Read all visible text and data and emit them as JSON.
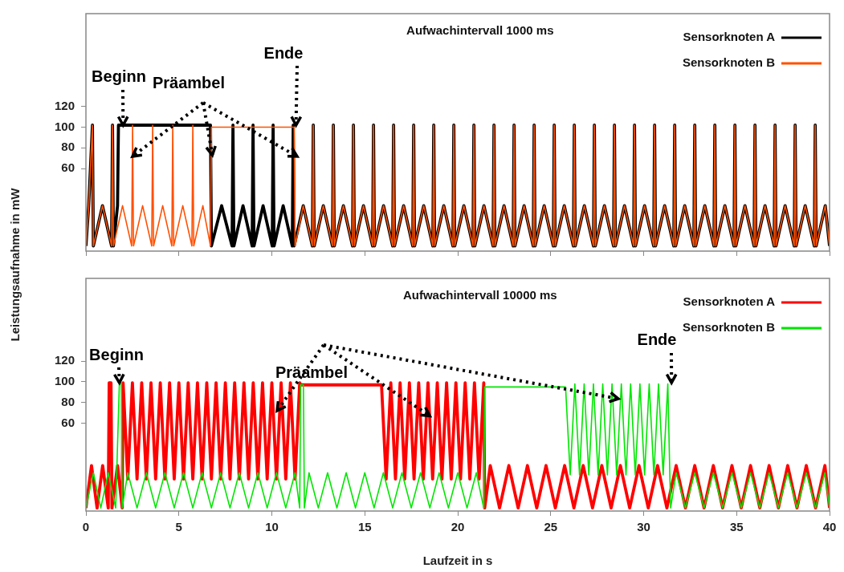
{
  "chart_data": [
    {
      "type": "line",
      "title": "Aufwachintervall 1000 ms",
      "ylabel": "Leistungsaufnahme in mW",
      "legend": "top right",
      "tick_labels": "y",
      "xlim": [
        0,
        40
      ],
      "xticks": [
        0,
        5,
        10,
        15,
        20,
        25,
        30,
        35,
        40
      ],
      "ylim": [
        -20,
        210
      ],
      "yticks": [
        60,
        80,
        100,
        120
      ],
      "annotations": [
        {
          "text": "Beginn",
          "x": 2,
          "y": 102
        },
        {
          "text": "Präambel",
          "x": 6.8,
          "y": 73
        },
        {
          "text": "Ende",
          "x": 11.3,
          "y": 102
        }
      ],
      "series": [
        {
          "name": "Sensorknoten A",
          "color": "#000000",
          "x": [
            0,
            0.15,
            0.35,
            0.4,
            0.89,
            1.38,
            1.43,
            1.48,
            1.7,
            1.75,
            6.7,
            6.75,
            7.3,
            7.86,
            7.91,
            7.96,
            8.45,
            8.94,
            8.99,
            9.04,
            9.53,
            10.02,
            10.07,
            10.12,
            10.61,
            11.1,
            11.15,
            11.2,
            11.69,
            12.18,
            12.23,
            12.28,
            12.77,
            13.26,
            13.31,
            13.36,
            13.85,
            14.34,
            14.39,
            14.44,
            14.93,
            15.42,
            15.47,
            15.52,
            16.01,
            16.5,
            16.55,
            16.6,
            17.09,
            17.58,
            17.63,
            17.68,
            18.17,
            18.66,
            18.71,
            18.76,
            19.25,
            19.74,
            19.79,
            19.84,
            20.33,
            20.82,
            20.87,
            20.92,
            21.41,
            21.9,
            21.95,
            22,
            22.49,
            22.98,
            23.03,
            23.08,
            23.57,
            24.06,
            24.11,
            24.16,
            24.65,
            25.14,
            25.19,
            25.24,
            25.73,
            26.22,
            26.27,
            26.32,
            26.81,
            27.3,
            27.35,
            27.4,
            27.89,
            28.38,
            28.43,
            28.48,
            28.97,
            29.46,
            29.51,
            29.56,
            30.05,
            30.54,
            30.59,
            30.64,
            31.13,
            31.62,
            31.67,
            31.72,
            32.21,
            32.7,
            32.75,
            32.8,
            33.29,
            33.78,
            33.83,
            33.88,
            34.37,
            34.86,
            34.91,
            34.96,
            35.45,
            35.94,
            35.99,
            36.04,
            36.53,
            37.02,
            37.07,
            37.12,
            37.61,
            38.1,
            38.15,
            38.2,
            38.69,
            39.18,
            39.23,
            39.28,
            39.77,
            40
          ],
          "values": [
            -15,
            24,
            102,
            -15,
            24,
            -15,
            102,
            -15,
            24,
            102,
            102,
            -15,
            24,
            -15,
            102,
            -15,
            24,
            -15,
            102,
            -15,
            24,
            -15,
            102,
            -15,
            24,
            -15,
            102,
            -15,
            24,
            -15,
            102,
            -15,
            24,
            -15,
            102,
            -15,
            24,
            -15,
            102,
            -15,
            24,
            -15,
            102,
            -15,
            24,
            -15,
            102,
            -15,
            24,
            -15,
            102,
            -15,
            24,
            -15,
            102,
            -15,
            24,
            -15,
            102,
            -15,
            24,
            -15,
            102,
            -15,
            24,
            -15,
            102,
            -15,
            24,
            -15,
            102,
            -15,
            24,
            -15,
            102,
            -15,
            24,
            -15,
            102,
            -15,
            24,
            -15,
            102,
            -15,
            24,
            -15,
            102,
            -15,
            24,
            -15,
            102,
            -15,
            24,
            -15,
            102,
            -15,
            24,
            -15,
            102,
            -15,
            24,
            -15,
            102,
            -15,
            24,
            -15,
            102,
            -15,
            24,
            -15,
            102,
            -15,
            24,
            -15,
            102,
            -15,
            24,
            -15,
            102,
            -15,
            24,
            -15,
            102,
            -15,
            24,
            -15,
            102,
            -15,
            24,
            -15,
            102,
            -15,
            24,
            -15
          ]
        },
        {
          "name": "Sensorknoten B",
          "color": "#ff5000",
          "x": [
            0,
            0.15,
            0.35,
            0.4,
            0.89,
            1.38,
            1.43,
            1.48,
            1.97,
            2.46,
            2.51,
            2.56,
            3.05,
            3.54,
            3.59,
            3.64,
            4.13,
            4.62,
            4.67,
            4.72,
            5.21,
            5.7,
            5.75,
            5.8,
            6.29,
            6.7,
            6.75,
            11.2,
            11.25,
            11.69,
            12.18,
            12.23,
            12.28,
            12.77,
            13.26,
            13.31,
            13.36,
            13.85,
            14.34,
            14.39,
            14.44,
            14.93,
            15.42,
            15.47,
            15.52,
            16.01,
            16.5,
            16.55,
            16.6,
            17.09,
            17.58,
            17.63,
            17.68,
            18.17,
            18.66,
            18.71,
            18.76,
            19.25,
            19.74,
            19.79,
            19.84,
            20.33,
            20.82,
            20.87,
            20.92,
            21.41,
            21.9,
            21.95,
            22,
            22.49,
            22.98,
            23.03,
            23.08,
            23.57,
            24.06,
            24.11,
            24.16,
            24.65,
            25.14,
            25.19,
            25.24,
            25.73,
            26.22,
            26.27,
            26.32,
            26.81,
            27.3,
            27.35,
            27.4,
            27.89,
            28.38,
            28.43,
            28.48,
            28.97,
            29.46,
            29.51,
            29.56,
            30.05,
            30.54,
            30.59,
            30.64,
            31.13,
            31.62,
            31.67,
            31.72,
            32.21,
            32.7,
            32.75,
            32.8,
            33.29,
            33.78,
            33.83,
            33.88,
            34.37,
            34.86,
            34.91,
            34.96,
            35.45,
            35.94,
            35.99,
            36.04,
            36.53,
            37.02,
            37.07,
            37.12,
            37.61,
            38.1,
            38.15,
            38.2,
            38.69,
            39.18,
            39.23,
            39.28,
            39.77,
            40
          ],
          "values": [
            -15,
            24,
            102,
            -15,
            24,
            -15,
            102,
            -15,
            24,
            -15,
            102,
            -15,
            24,
            -15,
            102,
            -15,
            24,
            -15,
            102,
            -15,
            24,
            -15,
            102,
            -15,
            24,
            -15,
            100,
            100,
            -15,
            24,
            -15,
            102,
            -15,
            24,
            -15,
            102,
            -15,
            24,
            -15,
            102,
            -15,
            24,
            -15,
            102,
            -15,
            24,
            -15,
            102,
            -15,
            24,
            -15,
            102,
            -15,
            24,
            -15,
            102,
            -15,
            24,
            -15,
            102,
            -15,
            24,
            -15,
            102,
            -15,
            24,
            -15,
            102,
            -15,
            24,
            -15,
            102,
            -15,
            24,
            -15,
            102,
            -15,
            24,
            -15,
            102,
            -15,
            24,
            -15,
            102,
            -15,
            24,
            -15,
            102,
            -15,
            24,
            -15,
            102,
            -15,
            24,
            -15,
            102,
            -15,
            24,
            -15,
            102,
            -15,
            24,
            -15,
            102,
            -15,
            24,
            -15,
            102,
            -15,
            24,
            -15,
            102,
            -15,
            24,
            -15,
            102,
            -15,
            24,
            -15,
            102,
            -15,
            24,
            -15,
            102,
            -15,
            24,
            -15,
            102,
            -15,
            24,
            -15,
            102,
            -15,
            24,
            -15
          ]
        }
      ]
    },
    {
      "type": "line",
      "title": "Aufwachintervall 10000 ms",
      "xlabel": "Laufzeit in s",
      "legend": "top right",
      "xlim": [
        0,
        40
      ],
      "xticks": [
        0,
        5,
        10,
        15,
        20,
        25,
        30,
        35,
        40
      ],
      "ylim": [
        -25,
        200
      ],
      "yticks": [
        60,
        80,
        100,
        120
      ],
      "annotations": [
        {
          "text": "Beginn",
          "x": 1.8,
          "y": 99
        },
        {
          "text": "Präambel",
          "x": 18.5,
          "y": 67
        },
        {
          "text": "Ende",
          "x": 31.5,
          "y": 99
        }
      ],
      "series": [
        {
          "name": "Sensorknoten A",
          "color": "#ff0000",
          "x": [
            0,
            0.3,
            0.6,
            0.9,
            1.2,
            1.25,
            1.35,
            1.4,
            1.7,
            1.95,
            2,
            2.25,
            2.5,
            2.75,
            3,
            3.25,
            3.5,
            3.75,
            4,
            4.25,
            4.5,
            4.75,
            5,
            5.25,
            5.5,
            5.75,
            6,
            6.25,
            6.5,
            6.75,
            7,
            7.25,
            7.5,
            7.75,
            8,
            8.25,
            8.5,
            8.75,
            9,
            9.25,
            9.5,
            9.75,
            10,
            10.25,
            10.5,
            10.75,
            11,
            11.25,
            11.5,
            11.55,
            15.9,
            16.15,
            16.4,
            16.65,
            16.9,
            17.15,
            17.4,
            17.65,
            17.9,
            18.15,
            18.4,
            18.65,
            18.9,
            19.15,
            19.4,
            19.65,
            19.9,
            20.15,
            20.4,
            20.65,
            20.9,
            21.15,
            21.4,
            21.45,
            21.75,
            22.25,
            22.75,
            23.25,
            23.75,
            24.25,
            24.75,
            25.25,
            25.75,
            26.25,
            26.75,
            27.25,
            27.75,
            28.25,
            28.75,
            29.25,
            29.75,
            30.25,
            30.75,
            31.25,
            31.75,
            32.25,
            32.75,
            33.25,
            33.75,
            34.25,
            34.75,
            35.25,
            35.75,
            36.25,
            36.75,
            37.25,
            37.75,
            38.25,
            38.75,
            39.25,
            39.75,
            40
          ],
          "values": [
            -22,
            19,
            -22,
            19,
            -22,
            99,
            99,
            -22,
            19,
            -22,
            99,
            6,
            99,
            6,
            99,
            6,
            99,
            6,
            99,
            6,
            99,
            6,
            99,
            6,
            99,
            6,
            99,
            6,
            99,
            6,
            99,
            6,
            99,
            6,
            99,
            6,
            99,
            6,
            99,
            6,
            99,
            6,
            99,
            6,
            99,
            6,
            99,
            6,
            99,
            97,
            97,
            6,
            99,
            6,
            99,
            6,
            99,
            6,
            99,
            6,
            99,
            6,
            99,
            6,
            99,
            6,
            99,
            6,
            99,
            6,
            99,
            6,
            99,
            -22,
            19,
            -22,
            19,
            -22,
            19,
            -22,
            19,
            -22,
            19,
            -22,
            19,
            -22,
            19,
            -22,
            19,
            -22,
            19,
            -22,
            19,
            -22,
            19,
            -22,
            19,
            -22,
            19,
            -22,
            19,
            -22,
            19,
            -22,
            19,
            -22,
            19,
            -22,
            19,
            -22,
            19,
            -22
          ]
        },
        {
          "name": "Sensorknoten B",
          "color": "#00e600",
          "x": [
            0,
            0.4,
            0.8,
            1.2,
            1.6,
            1.8,
            1.9,
            1.95,
            2.25,
            2.75,
            3.25,
            3.75,
            4.25,
            4.75,
            5.25,
            5.75,
            6.25,
            6.75,
            7.25,
            7.75,
            8.25,
            8.75,
            9.25,
            9.75,
            10.25,
            10.75,
            11.25,
            11.5,
            11.55,
            11.7,
            11.75,
            12,
            12.5,
            13,
            13.5,
            14,
            14.5,
            15,
            15.5,
            16,
            16.5,
            17,
            17.5,
            18,
            18.5,
            19,
            19.5,
            20,
            20.5,
            21,
            21.4,
            21.45,
            25.8,
            26.05,
            26.3,
            26.55,
            26.8,
            27.05,
            27.3,
            27.55,
            27.8,
            28.05,
            28.3,
            28.55,
            28.8,
            29.05,
            29.3,
            29.55,
            29.8,
            30.05,
            30.3,
            30.55,
            30.8,
            31.05,
            31.3,
            31.45,
            31.75,
            32.25,
            32.75,
            33.25,
            33.75,
            34.25,
            34.75,
            35.25,
            35.75,
            36.25,
            36.75,
            37.25,
            37.75,
            38.25,
            38.75,
            39.25,
            39.75,
            40
          ],
          "values": [
            -22,
            12,
            -22,
            12,
            -22,
            99,
            99,
            -22,
            12,
            -22,
            12,
            -22,
            12,
            -22,
            12,
            -22,
            12,
            -22,
            12,
            -22,
            12,
            -22,
            12,
            -22,
            12,
            -22,
            12,
            -22,
            97,
            97,
            -22,
            12,
            -22,
            12,
            -22,
            12,
            -22,
            12,
            -22,
            12,
            -22,
            12,
            -22,
            12,
            -22,
            12,
            -22,
            12,
            -22,
            12,
            -22,
            95,
            95,
            10,
            98,
            10,
            98,
            10,
            98,
            10,
            98,
            10,
            98,
            10,
            98,
            10,
            98,
            10,
            98,
            10,
            98,
            10,
            98,
            10,
            98,
            -22,
            12,
            -22,
            12,
            -22,
            12,
            -22,
            12,
            -22,
            12,
            -22,
            12,
            -22,
            12,
            -22,
            12,
            -22,
            12,
            -22
          ]
        }
      ]
    }
  ]
}
